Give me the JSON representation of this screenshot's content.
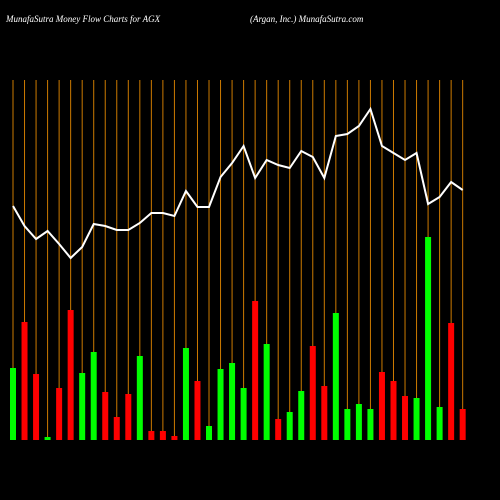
{
  "chart_data": {
    "type": "bar",
    "title": "MunafaSutra  Money Flow  Charts for AGX",
    "subtitle": "(Argan,  Inc.) MunafaSutra.com",
    "values": [
      72,
      118,
      66,
      3,
      52,
      130,
      67,
      88,
      48,
      23,
      46,
      84,
      9,
      9,
      4,
      92,
      59,
      14,
      71,
      77,
      52,
      139,
      96,
      21,
      28,
      49,
      94,
      54,
      127,
      31,
      36,
      31,
      68,
      59,
      44,
      42,
      203,
      33,
      117,
      31
    ],
    "colors": [
      "#00ff00",
      "#ff0000",
      "#ff0000",
      "#00ff00",
      "#ff0000",
      "#ff0000",
      "#00ff00",
      "#00ff00",
      "#ff0000",
      "#ff0000",
      "#ff0000",
      "#00ff00",
      "#ff0000",
      "#ff0000",
      "#ff0000",
      "#00ff00",
      "#ff0000",
      "#00ff00",
      "#00ff00",
      "#00ff00",
      "#00ff00",
      "#ff0000",
      "#00ff00",
      "#ff0000",
      "#00ff00",
      "#00ff00",
      "#ff0000",
      "#ff0000",
      "#00ff00",
      "#00ff00",
      "#00ff00",
      "#00ff00",
      "#ff0000",
      "#ff0000",
      "#ff0000",
      "#00ff00",
      "#00ff00",
      "#00ff00",
      "#ff0000",
      "#ff0000"
    ],
    "line_values": [
      234,
      214,
      201,
      209,
      196,
      182,
      193,
      216,
      214,
      210,
      210,
      217,
      227,
      227,
      224,
      249,
      233,
      233,
      263,
      277,
      294,
      262,
      280,
      275,
      272,
      289,
      283,
      262,
      304,
      306,
      314,
      331,
      294,
      287,
      280,
      287,
      236,
      243,
      258,
      250
    ],
    "line_color": "#ffffff",
    "grid_color": "#cc7a00",
    "ylim": [
      0,
      360
    ]
  }
}
